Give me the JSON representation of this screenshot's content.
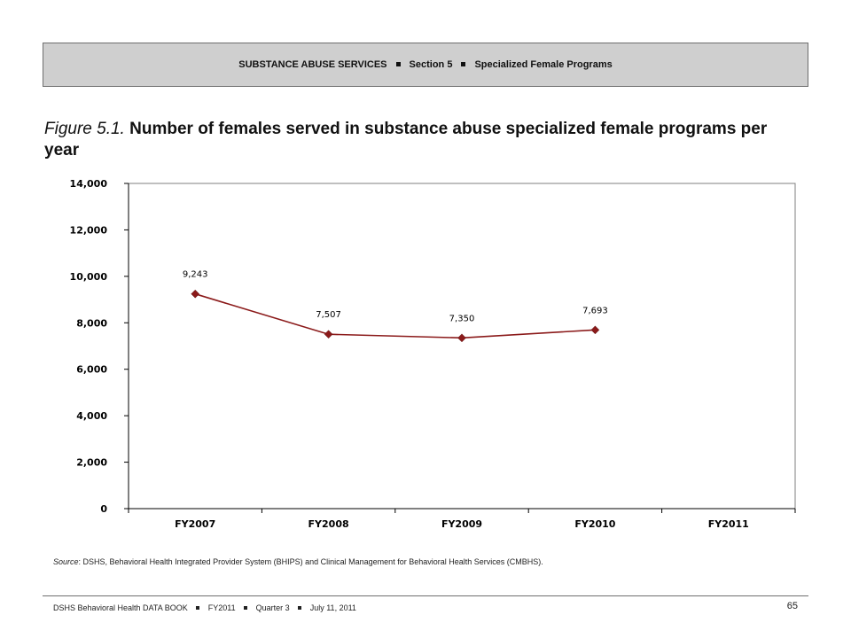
{
  "header": {
    "part1": "SUBSTANCE ABUSE SERVICES",
    "part2": "Section 5",
    "part3": "Specialized Female Programs"
  },
  "figure": {
    "label": "Figure",
    "number": "5.1.",
    "title": "Number of females served in substance abuse specialized female programs per year"
  },
  "chart_data": {
    "type": "line",
    "categories": [
      "FY2007",
      "FY2008",
      "FY2009",
      "FY2010",
      "FY2011"
    ],
    "series": [
      {
        "values": [
          9243,
          7507,
          7350,
          7693,
          null
        ],
        "labels": [
          "9,243",
          "7,507",
          "7,350",
          "7,693",
          null
        ]
      }
    ],
    "ylim": [
      0,
      14000
    ],
    "yticks": [
      0,
      2000,
      4000,
      6000,
      8000,
      10000,
      12000,
      14000
    ],
    "ytick_labels": [
      "0",
      "2,000",
      "4,000",
      "6,000",
      "8,000",
      "10,000",
      "12,000",
      "14,000"
    ],
    "xlabel": "",
    "ylabel": "",
    "grid": false,
    "line_color": "#8b1a1a",
    "marker": "diamond"
  },
  "source": {
    "label": "Source",
    "text": ": DSHS, Behavioral Health Integrated Provider System (BHIPS) and Clinical Management for Behavioral Health Services (CMBHS)."
  },
  "footer": {
    "part1": "DSHS Behavioral Health DATA BOOK",
    "part2": "FY2011",
    "part3": "Quarter 3",
    "part4": "July 11, 2011",
    "page": "65"
  }
}
